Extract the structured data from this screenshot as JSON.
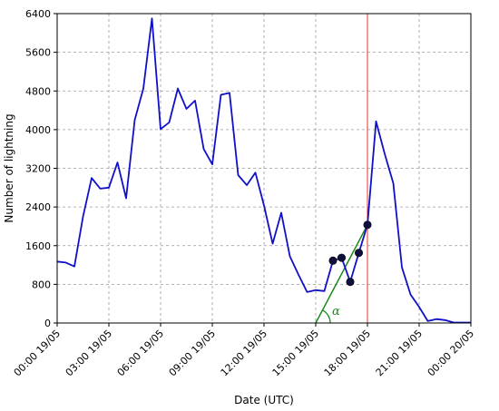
{
  "chart_data": {
    "type": "line",
    "xlabel": "Date (UTC)",
    "ylabel": "Number of lightning",
    "x_ticks": [
      "00:00 19/05",
      "03:00 19/05",
      "06:00 19/05",
      "09:00 19/05",
      "12:00 19/05",
      "15:00 19/05",
      "18:00 19/05",
      "21:00 19/05",
      "00:00 20/05"
    ],
    "y_ticks": [
      0,
      800,
      1600,
      2400,
      3200,
      4000,
      4800,
      5600,
      6400
    ],
    "xlim_hours": [
      0,
      24
    ],
    "ylim": [
      0,
      6400
    ],
    "grid": true,
    "series": [
      {
        "color": "#1010c8",
        "x_hours": [
          0,
          0.5,
          1,
          1.5,
          2,
          2.5,
          3,
          3.5,
          4,
          4.5,
          5,
          5.5,
          6,
          6.5,
          7,
          7.5,
          8,
          8.5,
          9,
          9.5,
          10,
          10.5,
          11,
          11.5,
          12,
          12.5,
          13,
          13.5,
          14,
          14.5,
          15,
          15.5,
          16,
          16.5,
          17,
          17.5,
          18,
          18.5,
          19,
          19.5,
          20,
          20.5,
          21,
          21.5,
          22,
          22.5,
          23,
          23.5,
          24
        ],
        "values": [
          1270,
          1250,
          1170,
          2200,
          3000,
          2780,
          2800,
          3320,
          2580,
          4200,
          4850,
          6300,
          4010,
          4150,
          4850,
          4430,
          4600,
          3600,
          3280,
          4720,
          4760,
          3060,
          2850,
          3110,
          2430,
          1640,
          2280,
          1380,
          1000,
          640,
          680,
          660,
          1290,
          1350,
          850,
          1450,
          2030,
          4170,
          3500,
          2890,
          1150,
          590,
          330,
          40,
          80,
          60,
          10,
          10,
          10
        ]
      }
    ],
    "markers": [
      {
        "x_hours": 16.0,
        "value": 1290
      },
      {
        "x_hours": 16.5,
        "value": 1350
      },
      {
        "x_hours": 17.0,
        "value": 850
      },
      {
        "x_hours": 17.5,
        "value": 1450
      },
      {
        "x_hours": 18.0,
        "value": 2030
      }
    ],
    "trend_line": {
      "color": "#1a8a1a",
      "from": {
        "x_hours": 15.0,
        "value": 0
      },
      "to": {
        "x_hours": 18.0,
        "value": 2030
      }
    },
    "vertical_line": {
      "color": "#e83030",
      "x_hours": 18.0
    },
    "angle_label": {
      "text": "α",
      "color": "#1a8a1a"
    }
  }
}
